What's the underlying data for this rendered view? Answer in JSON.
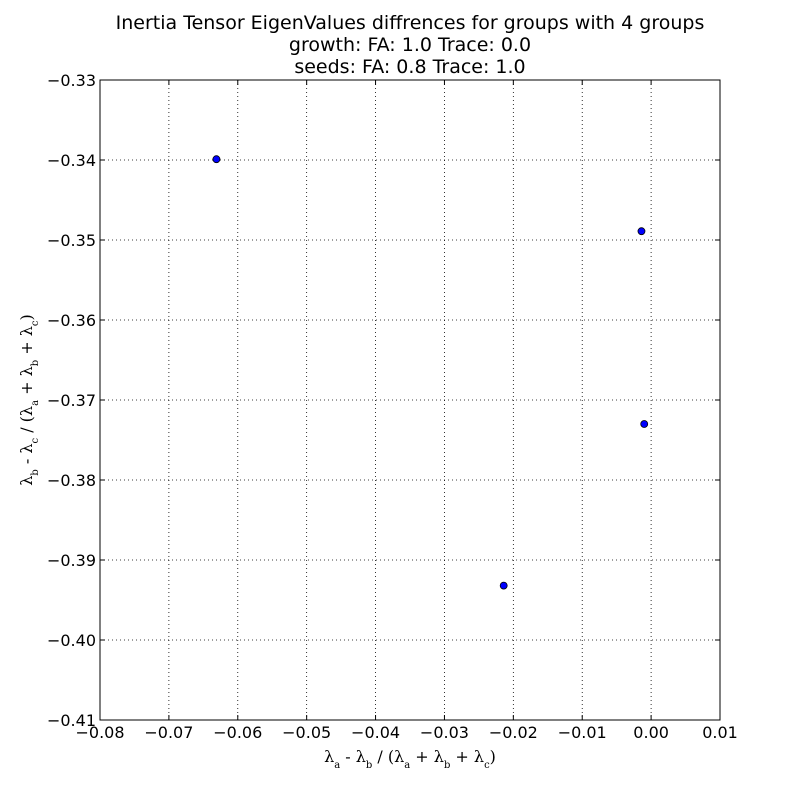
{
  "chart_data": {
    "type": "scatter",
    "title_lines": [
      "Inertia Tensor EigenValues diffrences for groups with 4 groups",
      "growth: FA: 1.0 Trace: 0.0",
      "seeds: FA: 0.8 Trace: 1.0"
    ],
    "xlabel_parts": [
      "λ",
      "a",
      " - λ",
      "b",
      " / (λ",
      "a",
      " + λ",
      "b",
      " + λ",
      "c",
      ")"
    ],
    "ylabel_parts": [
      "λ",
      "b",
      " - λ",
      "c",
      " / (λ",
      "a",
      " + λ",
      "b",
      " + λ",
      "c",
      ")"
    ],
    "xlim": [
      -0.08,
      0.01
    ],
    "ylim": [
      -0.41,
      -0.33
    ],
    "x_ticks": [
      -0.08,
      -0.07,
      -0.06,
      -0.05,
      -0.04,
      -0.03,
      -0.02,
      -0.01,
      0.0,
      0.01
    ],
    "x_tick_labels": [
      "−0.08",
      "−0.07",
      "−0.06",
      "−0.05",
      "−0.04",
      "−0.03",
      "−0.02",
      "−0.01",
      "0.00",
      "0.01"
    ],
    "y_ticks": [
      -0.33,
      -0.34,
      -0.35,
      -0.36,
      -0.37,
      -0.38,
      -0.39,
      -0.4,
      -0.41
    ],
    "y_tick_labels": [
      "−0.33",
      "−0.34",
      "−0.35",
      "−0.36",
      "−0.37",
      "−0.38",
      "−0.39",
      "−0.40",
      "−0.41"
    ],
    "grid": true,
    "marker_color": "#0000ff",
    "points": [
      {
        "x": -0.0631,
        "y": -0.3399
      },
      {
        "x": -0.0014,
        "y": -0.3489
      },
      {
        "x": -0.001,
        "y": -0.373
      },
      {
        "x": -0.0214,
        "y": -0.3932
      }
    ]
  }
}
